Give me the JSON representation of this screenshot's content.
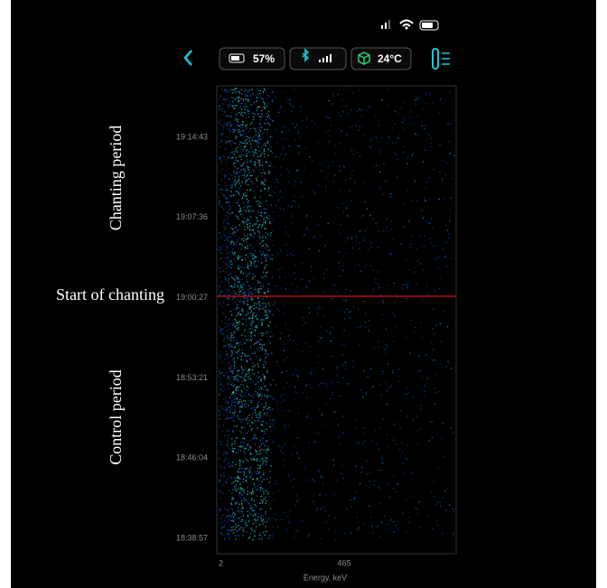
{
  "toolbar": {
    "battery": "57%",
    "temperature": "24°C"
  },
  "chart": {
    "y_labels": [
      "19:14:43",
      "19:07:36",
      "19:00:27",
      "18:53:21",
      "18:46:04",
      "18:38:57"
    ],
    "x_labels": [
      "2",
      "465"
    ],
    "x_axis_label": "Energy, keV",
    "annotations": {
      "top": "Chanting period",
      "middle": "Start of chanting",
      "bottom": "Control period"
    }
  }
}
